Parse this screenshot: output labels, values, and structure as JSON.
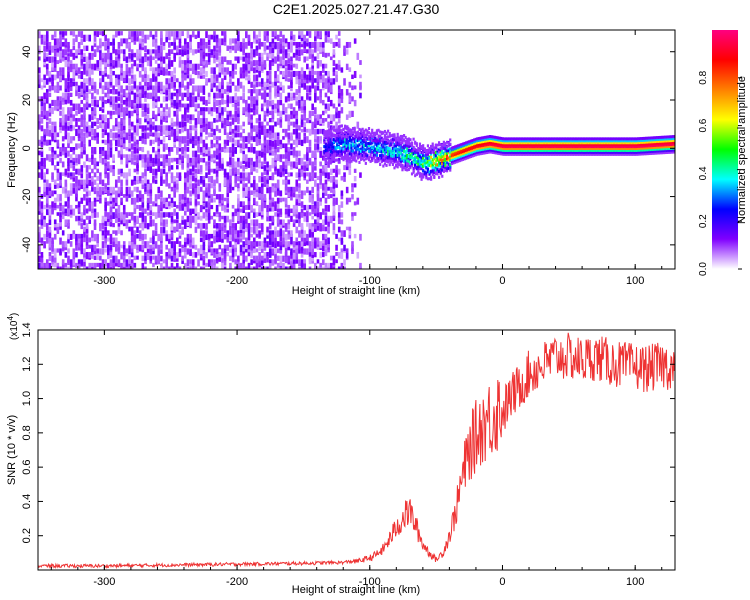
{
  "figure": {
    "title": "C2E1.2025.027.21.47.G30"
  },
  "chart_data": [
    {
      "type": "heatmap",
      "title": "C2E1.2025.027.21.47.G30",
      "xlabel": "Height of straight line (km)",
      "ylabel": "Frequency (Hz)",
      "xlim": [
        -350,
        130
      ],
      "ylim": [
        -50,
        49
      ],
      "xticks": [
        -300,
        -200,
        -100,
        0,
        100
      ],
      "yticks": [
        -40,
        -20,
        0,
        20,
        40
      ],
      "xtick_labels": [
        "-300",
        "-200",
        "-100",
        "0",
        "100"
      ],
      "ytick_labels": [
        "-40",
        "-20",
        "0",
        "20",
        "40"
      ],
      "colorbar": {
        "label": "Normalized spectral amplitude",
        "range": [
          0.0,
          1.0
        ],
        "ticks": [
          0.0,
          0.2,
          0.4,
          0.6,
          0.8
        ],
        "tick_labels": [
          "0.0",
          "0.2",
          "0.4",
          "0.6",
          "0.8"
        ],
        "colors": [
          "#ffffff",
          "#8000ff",
          "#0000ff",
          "#00ffff",
          "#00ff00",
          "#ffff00",
          "#ff8000",
          "#ff0000",
          "#ff0080"
        ]
      },
      "carrier_track": {
        "x": [
          -135,
          -120,
          -100,
          -80,
          -70,
          -60,
          -50,
          -40,
          -30,
          -20,
          -10,
          0,
          50,
          100,
          130
        ],
        "frequency": [
          1,
          2,
          1,
          -1,
          -3,
          -6,
          -5,
          -3,
          -1,
          1,
          2,
          1,
          1,
          1,
          2
        ],
        "peak_amplitude": [
          0.3,
          0.4,
          0.4,
          0.45,
          0.5,
          0.55,
          0.75,
          0.85,
          0.9,
          0.92,
          0.95,
          0.97,
          0.98,
          0.98,
          0.97
        ]
      }
    },
    {
      "type": "line",
      "xlabel": "Height of straight line (km)",
      "ylabel": "SNR (10 * v/v)",
      "y_multiplier": "(x10",
      "y_multiplier_exponent": "4",
      "y_multiplier_close": ")",
      "xlim": [
        -350,
        130
      ],
      "ylim": [
        0,
        1.4
      ],
      "xticks": [
        -300,
        -200,
        -100,
        0,
        100
      ],
      "yticks": [
        0.2,
        0.4,
        0.6,
        0.8,
        1.0,
        1.2,
        1.4
      ],
      "xtick_labels": [
        "-300",
        "-200",
        "-100",
        "0",
        "100"
      ],
      "ytick_labels": [
        "0.2",
        "0.4",
        "0.6",
        "0.8",
        "1.0",
        "1.2",
        "1.4"
      ],
      "line_color": "#ee3333",
      "series": [
        {
          "x": [
            -350,
            -300,
            -250,
            -200,
            -150,
            -120,
            -110,
            -100,
            -95,
            -90,
            -85,
            -80,
            -75,
            -70,
            -65,
            -60,
            -55,
            -50,
            -45,
            -40,
            -35,
            -30,
            -25,
            -20,
            -15,
            -10,
            -5,
            0,
            5,
            10,
            15,
            20,
            30,
            40,
            50,
            60,
            70,
            80,
            90,
            100,
            110,
            120,
            130
          ],
          "y": [
            0.02,
            0.02,
            0.025,
            0.03,
            0.035,
            0.04,
            0.05,
            0.07,
            0.09,
            0.12,
            0.18,
            0.25,
            0.3,
            0.35,
            0.25,
            0.15,
            0.1,
            0.06,
            0.1,
            0.2,
            0.35,
            0.55,
            0.7,
            0.78,
            0.85,
            0.88,
            0.92,
            0.97,
            1.05,
            1.1,
            1.15,
            1.2,
            1.25,
            1.3,
            1.3,
            1.28,
            1.3,
            1.27,
            1.25,
            1.24,
            1.23,
            1.25,
            1.24
          ]
        }
      ]
    }
  ]
}
